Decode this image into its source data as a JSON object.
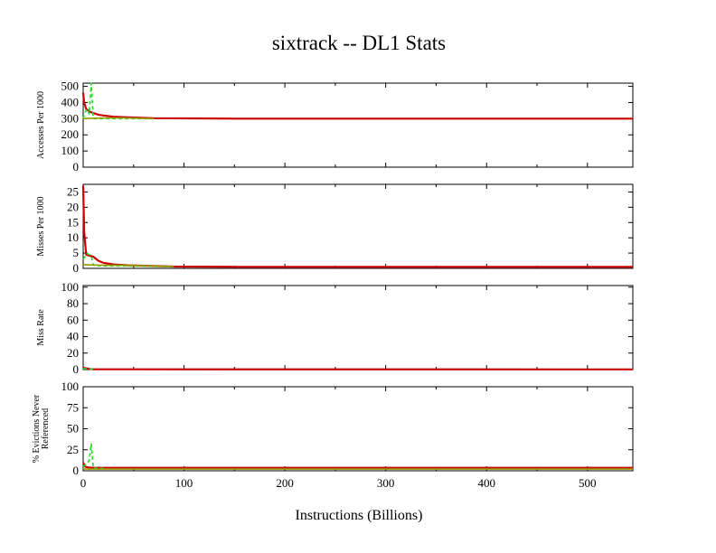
{
  "title": "sixtrack -- DL1  Stats",
  "xlabel": "Instructions (Billions)",
  "colors": {
    "red": "#cc0000",
    "green": "#22dd22",
    "olive": "#999900",
    "axis": "#000000"
  },
  "chart_data": [
    {
      "type": "line",
      "ylabel": [
        "Accesses Per 1000"
      ],
      "xlim": [
        0,
        545
      ],
      "ylim": [
        0,
        520
      ],
      "xticks": [
        0,
        100,
        200,
        300,
        400,
        500
      ],
      "yticks": [
        0,
        100,
        200,
        300,
        400,
        500
      ],
      "series": [
        {
          "color": "red",
          "x": [
            0,
            1,
            3,
            6,
            10,
            15,
            20,
            30,
            45,
            70,
            150,
            300,
            545
          ],
          "y": [
            460,
            400,
            360,
            345,
            335,
            325,
            320,
            312,
            308,
            303,
            300,
            300,
            300
          ]
        },
        {
          "color": "green",
          "x": [
            0,
            2,
            4,
            6,
            8,
            10,
            20,
            30,
            50,
            70
          ],
          "y": [
            300,
            340,
            360,
            330,
            520,
            300,
            300,
            300,
            300,
            300
          ]
        },
        {
          "color": "olive",
          "x": [
            0,
            20,
            40,
            70
          ],
          "y": [
            300,
            305,
            305,
            300
          ]
        }
      ]
    },
    {
      "type": "line",
      "ylabel": [
        "Misses Per 1000"
      ],
      "xlim": [
        0,
        545
      ],
      "ylim": [
        0,
        27.5
      ],
      "xticks": [
        0,
        100,
        200,
        300,
        400,
        500
      ],
      "yticks": [
        0,
        5,
        10,
        15,
        20,
        25
      ],
      "series": [
        {
          "color": "red",
          "x": [
            0,
            1,
            3,
            6,
            10,
            15,
            20,
            30,
            45,
            90,
            150,
            300,
            545
          ],
          "y": [
            27,
            12,
            4.5,
            4.2,
            3.8,
            2.5,
            1.8,
            1.3,
            1,
            0.6,
            0.5,
            0.5,
            0.5
          ]
        },
        {
          "color": "green",
          "x": [
            0,
            2,
            4,
            6,
            8,
            10,
            20,
            30,
            45,
            90
          ],
          "y": [
            3,
            4,
            4.8,
            4.5,
            4.2,
            1,
            0.8,
            0.8,
            0.8,
            0.5
          ]
        },
        {
          "color": "olive",
          "x": [
            0,
            20,
            45,
            90
          ],
          "y": [
            1.2,
            1,
            1,
            0.6
          ]
        }
      ]
    },
    {
      "type": "line",
      "ylabel": [
        "Miss Rate"
      ],
      "xlim": [
        0,
        545
      ],
      "ylim": [
        0,
        102
      ],
      "xticks": [
        0,
        100,
        200,
        300,
        400,
        500
      ],
      "yticks": [
        0,
        20,
        40,
        60,
        80,
        100
      ],
      "series": [
        {
          "color": "red",
          "x": [
            0,
            2,
            5,
            10,
            545
          ],
          "y": [
            2.5,
            1.5,
            1,
            0.3,
            0.2
          ]
        },
        {
          "color": "green",
          "x": [
            0,
            5,
            10
          ],
          "y": [
            1,
            1.2,
            0.3
          ]
        }
      ]
    },
    {
      "type": "line",
      "ylabel": [
        "% Evictions Never",
        "Referenced"
      ],
      "xlim": [
        0,
        545
      ],
      "ylim": [
        0,
        100
      ],
      "xticks": [
        0,
        100,
        200,
        300,
        400,
        500
      ],
      "yticks": [
        0,
        25,
        50,
        75,
        100
      ],
      "series": [
        {
          "color": "red",
          "x": [
            0,
            2,
            5,
            10,
            545
          ],
          "y": [
            10,
            5,
            4,
            3.5,
            3.5
          ]
        },
        {
          "color": "green",
          "x": [
            0,
            3,
            6,
            8,
            10,
            20
          ],
          "y": [
            5,
            8,
            12,
            32,
            3,
            3
          ]
        },
        {
          "color": "olive",
          "x": [
            0,
            20,
            545
          ],
          "y": [
            2,
            2,
            2
          ]
        }
      ]
    }
  ]
}
